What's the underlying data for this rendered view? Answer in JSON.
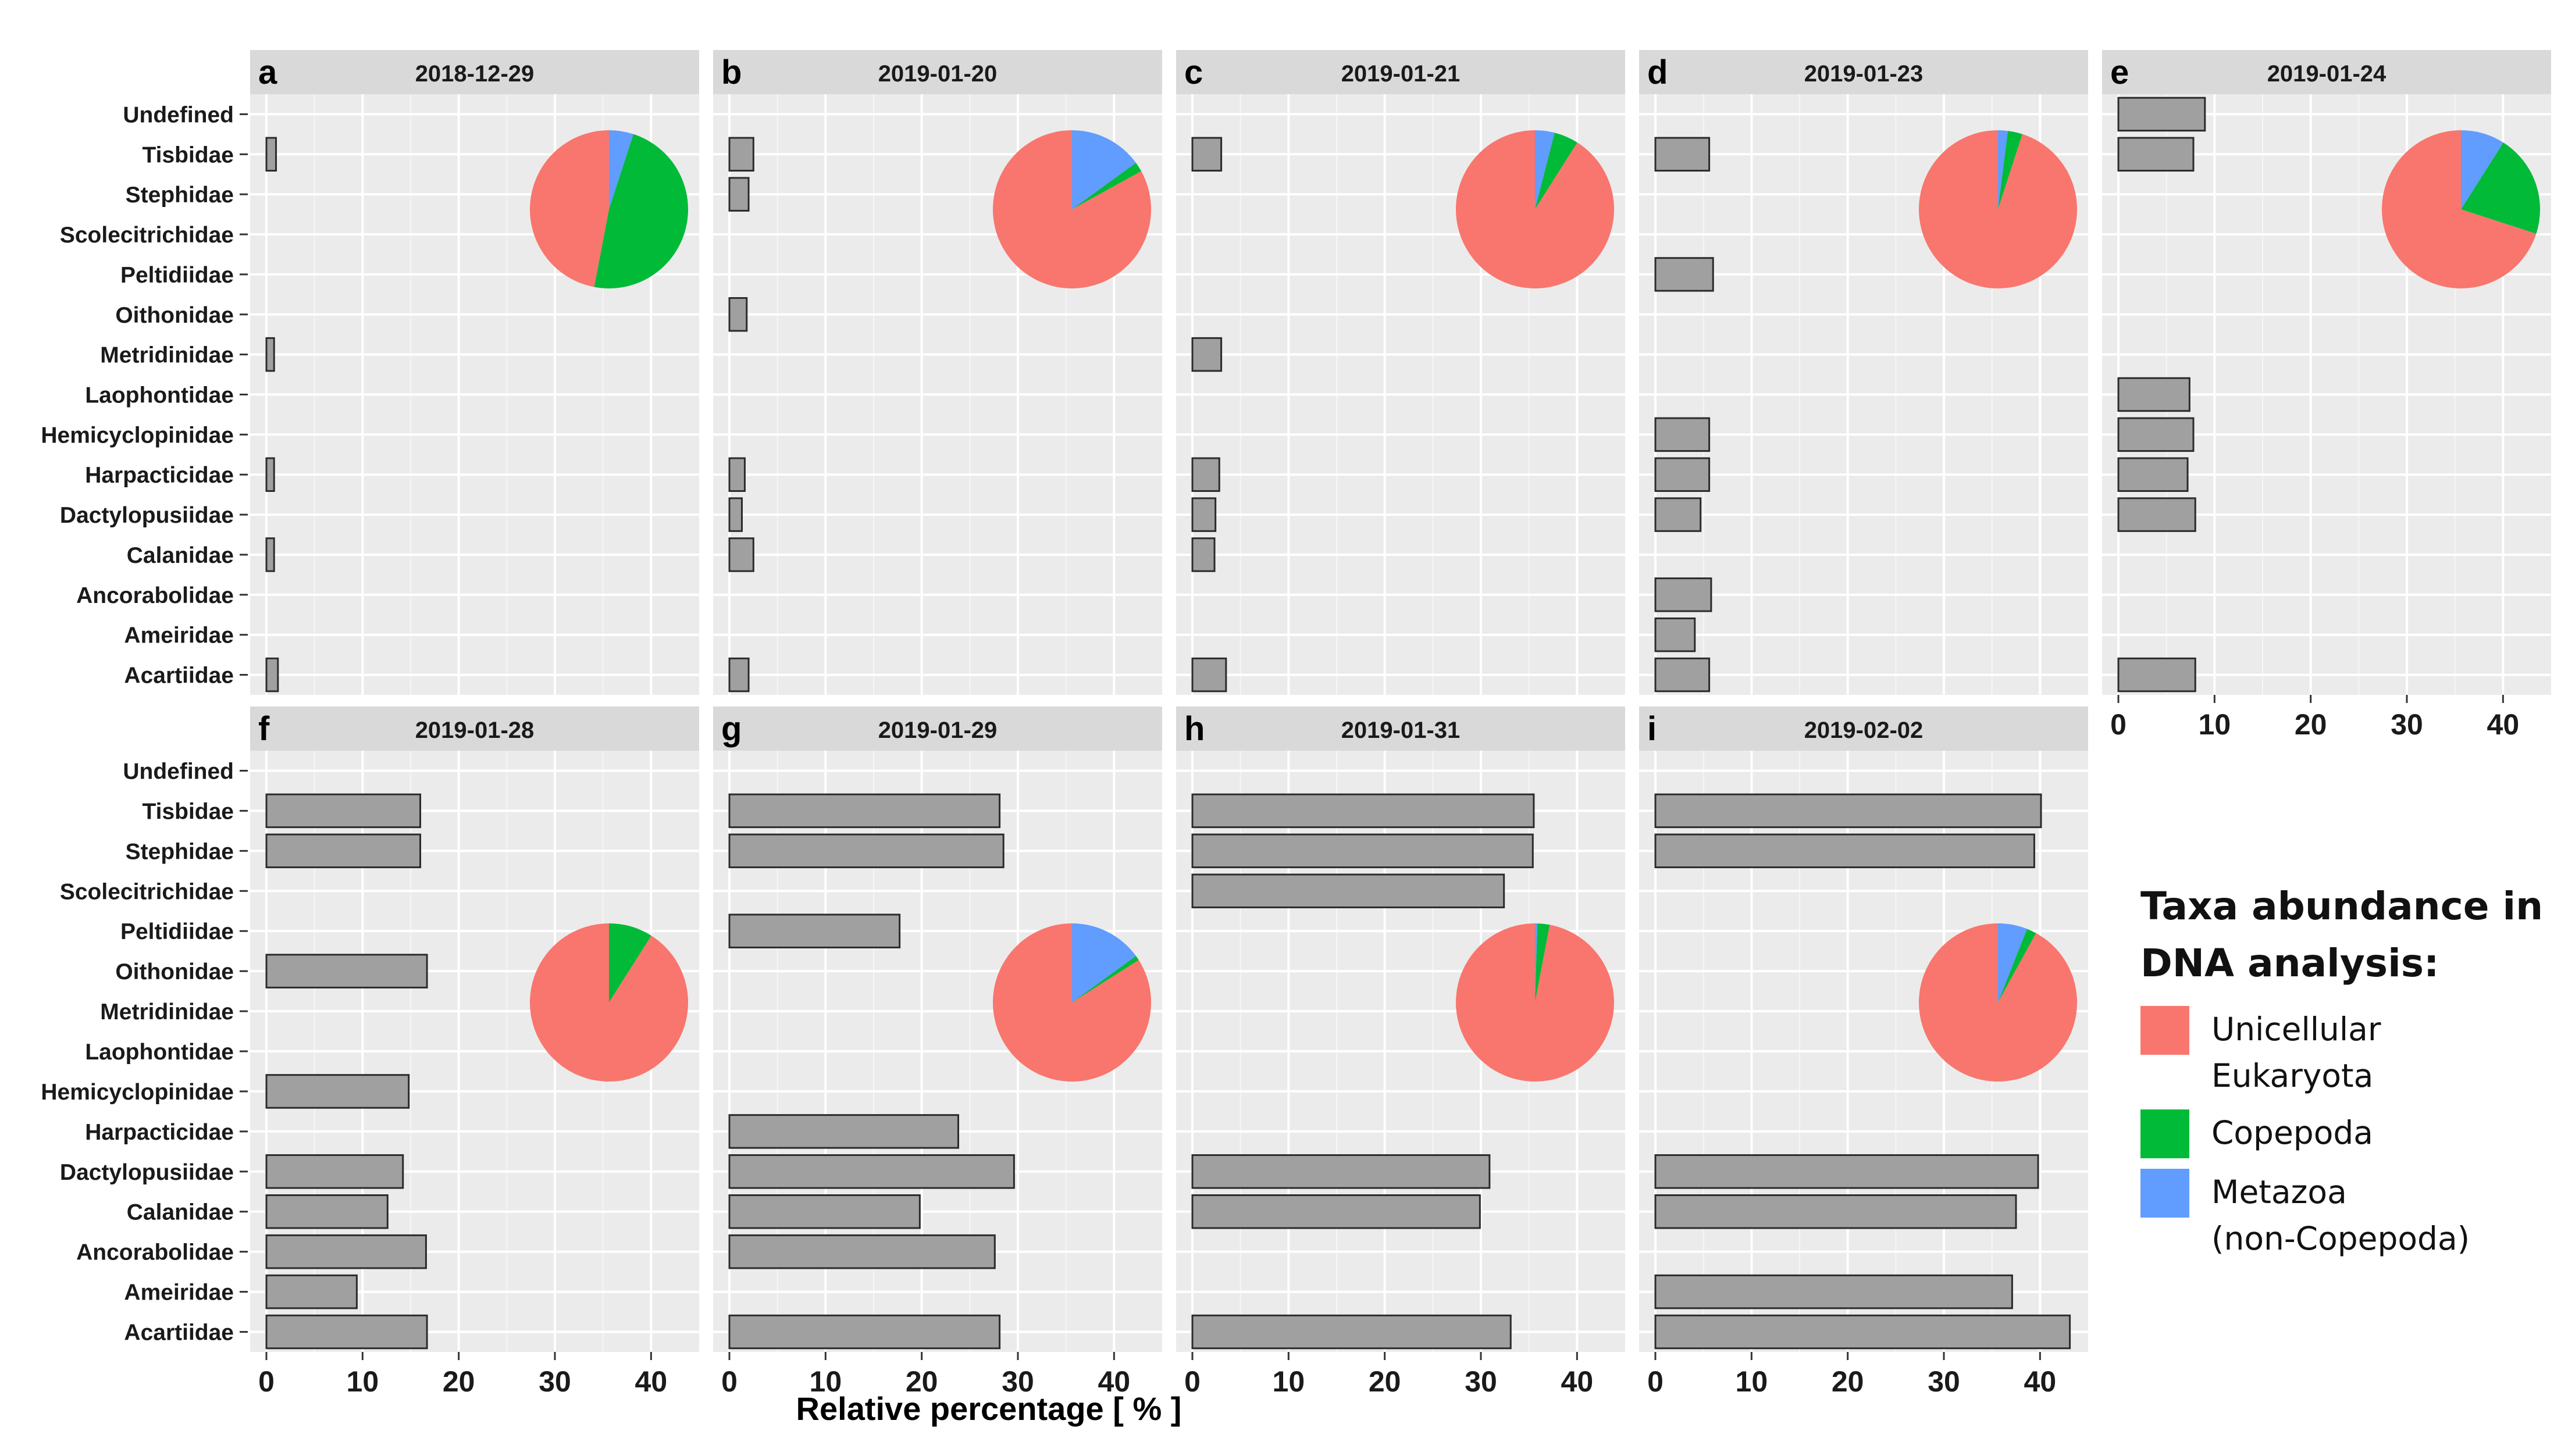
{
  "figure": {
    "xlabel": "Relative percentage [ % ]",
    "bar_color": "#A0A0A0",
    "panel_background": "#EBEBEB",
    "strip_background": "#D9D9D9"
  },
  "legend": {
    "title": "Taxa abundance in DNA analysis:",
    "items": [
      {
        "label": "Unicellular Eukaryota",
        "color": "#F8766D"
      },
      {
        "label": "Copepoda",
        "color": "#00BA38"
      },
      {
        "label": "Metazoa\n(non-Copepoda)",
        "color": "#619CFF"
      }
    ]
  },
  "chart_data": {
    "type": "bar",
    "orientation": "horizontal",
    "categories": [
      "Undefined",
      "Tisbidae",
      "Stephidae",
      "Scolecitrichidae",
      "Peltidiidae",
      "Oithonidae",
      "Metridinidae",
      "Laophontidae",
      "Hemicyclopinidae",
      "Harpacticidae",
      "Dactylopusiidae",
      "Calanidae",
      "Ancorabolidae",
      "Ameiridae",
      "Acartiidae"
    ],
    "xlim": [
      0,
      45
    ],
    "xticks": [
      0,
      10,
      20,
      30,
      40
    ],
    "grid": true,
    "panels": [
      {
        "letter": "a",
        "date": "2018-12-29",
        "values": [
          0,
          1.0,
          0,
          0,
          0,
          0,
          0.8,
          0,
          0,
          0.8,
          0,
          0.8,
          0,
          0,
          1.2
        ],
        "pie": {
          "Unicellular Eukaryota": 47,
          "Copepoda": 48,
          "Metazoa (non-Copepoda)": 5
        }
      },
      {
        "letter": "b",
        "date": "2019-01-20",
        "values": [
          0,
          2.5,
          2.0,
          0,
          0,
          1.8,
          0,
          0,
          0,
          1.6,
          1.3,
          2.5,
          0,
          0,
          2.0
        ],
        "pie": {
          "Unicellular Eukaryota": 83,
          "Copepoda": 2,
          "Metazoa (non-Copepoda)": 15
        }
      },
      {
        "letter": "c",
        "date": "2019-01-21",
        "values": [
          0,
          3.0,
          0,
          0,
          0,
          0,
          3.0,
          0,
          0,
          2.8,
          2.4,
          2.3,
          0,
          0,
          3.5
        ],
        "pie": {
          "Unicellular Eukaryota": 91,
          "Copepoda": 5,
          "Metazoa (non-Copepoda)": 4
        }
      },
      {
        "letter": "d",
        "date": "2019-01-23",
        "values": [
          0,
          5.6,
          0,
          0,
          6.0,
          0,
          0,
          0,
          5.6,
          5.6,
          4.7,
          0,
          5.8,
          4.1,
          5.6
        ],
        "pie": {
          "Unicellular Eukaryota": 95,
          "Copepoda": 3,
          "Metazoa (non-Copepoda)": 2
        }
      },
      {
        "letter": "e",
        "date": "2019-01-24",
        "values": [
          9.0,
          7.8,
          0,
          0,
          0,
          0,
          0,
          7.4,
          7.8,
          7.2,
          8.0,
          0,
          0,
          0,
          8.0
        ],
        "pie": {
          "Unicellular Eukaryota": 70,
          "Copepoda": 21,
          "Metazoa (non-Copepoda)": 9
        }
      },
      {
        "letter": "f",
        "date": "2019-01-28",
        "values": [
          0,
          16.0,
          16.0,
          0,
          0,
          16.7,
          0,
          0,
          14.8,
          0,
          14.2,
          12.6,
          16.6,
          9.4,
          16.7
        ],
        "pie": {
          "Unicellular Eukaryota": 91,
          "Copepoda": 9,
          "Metazoa (non-Copepoda)": 0
        }
      },
      {
        "letter": "g",
        "date": "2019-01-29",
        "values": [
          0,
          28.1,
          28.5,
          0,
          17.7,
          0,
          0,
          0,
          0,
          23.8,
          29.6,
          19.8,
          27.6,
          0,
          28.1
        ],
        "pie": {
          "Unicellular Eukaryota": 84,
          "Copepoda": 1,
          "Metazoa (non-Copepoda)": 15
        }
      },
      {
        "letter": "h",
        "date": "2019-01-31",
        "values": [
          0,
          35.5,
          35.4,
          32.4,
          0,
          0,
          0,
          0,
          0,
          0,
          30.9,
          29.9,
          0,
          0,
          33.1
        ],
        "pie": {
          "Unicellular Eukaryota": 97,
          "Copepoda": 2.5,
          "Metazoa (non-Copepoda)": 0.5
        }
      },
      {
        "letter": "i",
        "date": "2019-02-02",
        "values": [
          0,
          40.1,
          39.4,
          0,
          0,
          0,
          0,
          0,
          0,
          0,
          39.8,
          37.5,
          0,
          37.1,
          43.1
        ],
        "pie": {
          "Unicellular Eukaryota": 92,
          "Copepoda": 2,
          "Metazoa (non-Copepoda)": 6
        }
      }
    ]
  }
}
